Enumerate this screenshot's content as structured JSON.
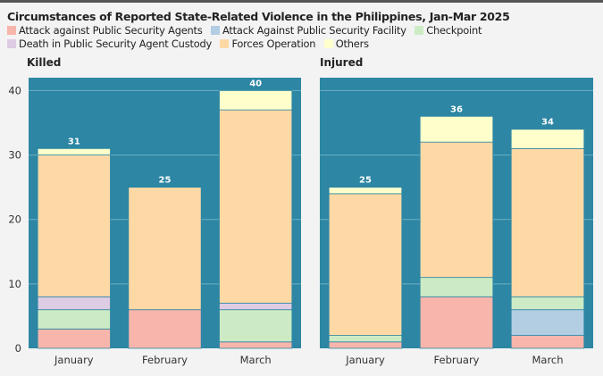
{
  "title": "Circumstances of Reported State-Related Violence in the Philippines, Jan-Mar 2025",
  "colors": {
    "plot_bg": "#2c86a4",
    "grid": "#6fb0c6",
    "bar_stroke": "#2c86a4"
  },
  "chart_data": [
    {
      "type": "bar",
      "stacked": true,
      "title": "Killed",
      "categories": [
        "January",
        "February",
        "March"
      ],
      "ylim": [
        0,
        42
      ],
      "yticks": [
        0,
        10,
        20,
        30,
        40
      ],
      "grid": true,
      "legend_position": "top",
      "series": [
        {
          "name": "Attack against Public Security Agents",
          "color": "#f7b5ac",
          "values": [
            3,
            6,
            1
          ]
        },
        {
          "name": "Attack Against Public Security Facility",
          "color": "#b3cde3",
          "values": [
            0,
            0,
            0
          ]
        },
        {
          "name": "Checkpoint",
          "color": "#ccebc5",
          "values": [
            3,
            0,
            5
          ]
        },
        {
          "name": "Death in Public Security Agent Custody",
          "color": "#decbe4",
          "values": [
            2,
            0,
            1
          ]
        },
        {
          "name": "Forces Operation",
          "color": "#fed9a6",
          "values": [
            22,
            19,
            30
          ]
        },
        {
          "name": "Others",
          "color": "#ffffcc",
          "values": [
            1,
            0,
            3
          ]
        }
      ],
      "totals": [
        31,
        25,
        40
      ]
    },
    {
      "type": "bar",
      "stacked": true,
      "title": "Injured",
      "categories": [
        "January",
        "February",
        "March"
      ],
      "ylim": [
        0,
        42
      ],
      "yticks": [
        0,
        10,
        20,
        30,
        40
      ],
      "grid": true,
      "legend_position": "top",
      "series": [
        {
          "name": "Attack against Public Security Agents",
          "color": "#f7b5ac",
          "values": [
            1,
            8,
            2
          ]
        },
        {
          "name": "Attack Against Public Security Facility",
          "color": "#b3cde3",
          "values": [
            0,
            0,
            4
          ]
        },
        {
          "name": "Checkpoint",
          "color": "#ccebc5",
          "values": [
            1,
            3,
            2
          ]
        },
        {
          "name": "Death in Public Security Agent Custody",
          "color": "#decbe4",
          "values": [
            0,
            0,
            0
          ]
        },
        {
          "name": "Forces Operation",
          "color": "#fed9a6",
          "values": [
            22,
            21,
            23
          ]
        },
        {
          "name": "Others",
          "color": "#ffffcc",
          "values": [
            1,
            4,
            3
          ]
        }
      ],
      "totals": [
        25,
        36,
        34
      ]
    }
  ]
}
